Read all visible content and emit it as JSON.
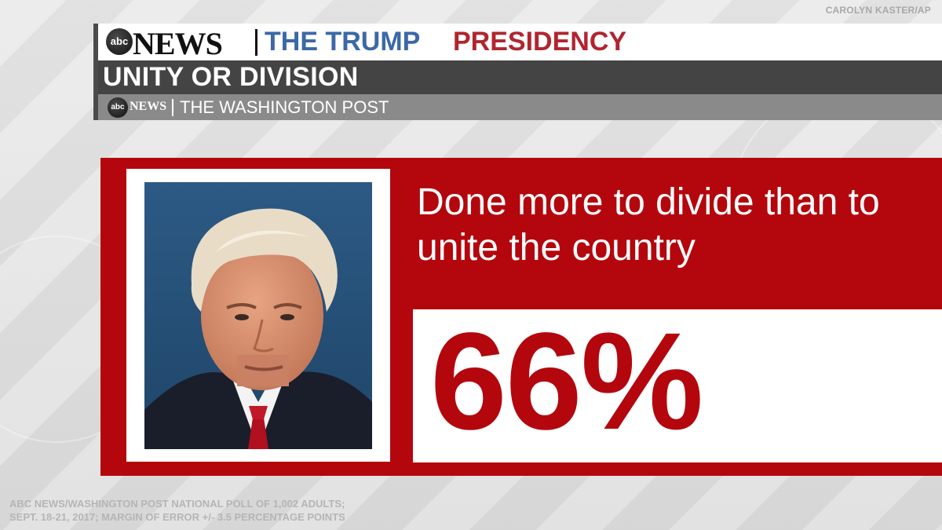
{
  "photo_credit": "CAROLYN KASTER/AP",
  "header": {
    "abc_logo": "abc",
    "news_wordmark": "NEWS",
    "title_part1": "THE TRUMP",
    "title_part2": "PRESIDENCY",
    "subtitle": "UNITY OR DIVISION",
    "source_wordmark": "NEWS",
    "source_partner": "THE WASHINGTON POST"
  },
  "card": {
    "statement": "Done more to divide than to unite the country",
    "value": "66%"
  },
  "footnote": {
    "line1": "ABC NEWS/WASHINGTON POST NATIONAL POLL OF 1,002 ADULTS;",
    "line2": "SEPT. 18-21, 2017; MARGIN OF ERROR +/- 3.5 PERCENTAGE POINTS"
  },
  "colors": {
    "brand_red": "#b3070d",
    "title_blue": "#3b68a8",
    "title_red": "#b1252f",
    "header_dark": "#444444",
    "header_gray": "#8a8a8a"
  }
}
